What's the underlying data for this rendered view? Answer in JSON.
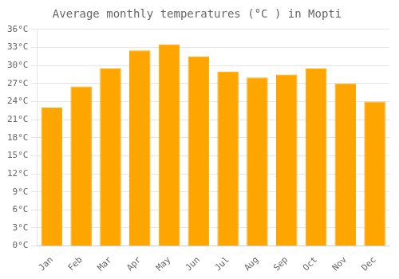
{
  "chart_data": {
    "type": "bar",
    "title": "Average monthly temperatures (°C ) in Mopti",
    "categories": [
      "Jan",
      "Feb",
      "Mar",
      "Apr",
      "May",
      "Jun",
      "Jul",
      "Aug",
      "Sep",
      "Oct",
      "Nov",
      "Dec"
    ],
    "values": [
      23.0,
      26.5,
      29.5,
      32.5,
      33.5,
      31.5,
      29.0,
      28.0,
      28.5,
      29.5,
      27.0,
      24.0
    ],
    "color": "#FFA500",
    "ylim": [
      0,
      36
    ],
    "yticks": [
      {
        "value": 0,
        "label": "0°C"
      },
      {
        "value": 3,
        "label": "3°C"
      },
      {
        "value": 6,
        "label": "6°C"
      },
      {
        "value": 9,
        "label": "9°C"
      },
      {
        "value": 12,
        "label": "12°C"
      },
      {
        "value": 15,
        "label": "15°C"
      },
      {
        "value": 18,
        "label": "18°C"
      },
      {
        "value": 21,
        "label": "21°C"
      },
      {
        "value": 24,
        "label": "24°C"
      },
      {
        "value": 27,
        "label": "27°C"
      },
      {
        "value": 30,
        "label": "30°C"
      },
      {
        "value": 33,
        "label": "33°C"
      },
      {
        "value": 36,
        "label": "36°C"
      }
    ],
    "grid": true
  }
}
